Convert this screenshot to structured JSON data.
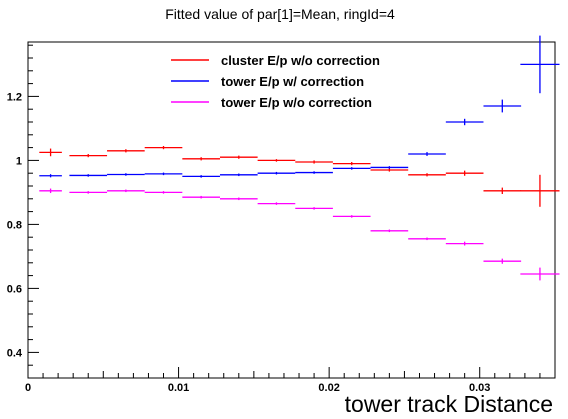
{
  "chart_data": {
    "type": "scatter",
    "title": "Fitted value of par[1]=Mean, ringId=4",
    "xlabel": "tower track Distance",
    "ylabel": "",
    "xlim": [
      0,
      0.035
    ],
    "ylim": [
      0.32,
      1.37
    ],
    "x_ticks": [
      {
        "value": 0,
        "label": "0"
      },
      {
        "value": 0.01,
        "label": "0.01"
      },
      {
        "value": 0.02,
        "label": "0.02"
      },
      {
        "value": 0.03,
        "label": "0.03"
      }
    ],
    "y_ticks": [
      {
        "value": 0.4,
        "label": "0.4"
      },
      {
        "value": 0.6,
        "label": "0.6"
      },
      {
        "value": 0.8,
        "label": "0.8"
      },
      {
        "value": 1.0,
        "label": "1"
      },
      {
        "value": 1.2,
        "label": "1.2"
      }
    ],
    "x_bin_edges": [
      0.00075,
      0.00325,
      0.00575,
      0.00825,
      0.01075,
      0.01325,
      0.01575,
      0.01825,
      0.02075,
      0.02325,
      0.02575,
      0.02825,
      0.03075,
      0.03325,
      0.0358
    ],
    "series": [
      {
        "name": "cluster E/p w/o correction",
        "color": "#ff0000",
        "x": [
          0.0015,
          0.004,
          0.0065,
          0.009,
          0.0115,
          0.014,
          0.0165,
          0.019,
          0.0215,
          0.024,
          0.0265,
          0.029,
          0.0315,
          0.034
        ],
        "y": [
          1.025,
          1.015,
          1.03,
          1.04,
          1.005,
          1.01,
          1.0,
          0.995,
          0.99,
          0.97,
          0.955,
          0.96,
          0.905,
          0.905
        ],
        "yerr": [
          0.012,
          0.005,
          0.005,
          0.005,
          0.005,
          0.005,
          0.004,
          0.005,
          0.005,
          0.005,
          0.005,
          0.008,
          0.01,
          0.05
        ],
        "xerr": [
          0.00075,
          0.00125,
          0.00125,
          0.00125,
          0.00125,
          0.00125,
          0.00125,
          0.00125,
          0.00125,
          0.00125,
          0.00125,
          0.00125,
          0.00125,
          0.0013
        ]
      },
      {
        "name": "tower E/p w/ correction",
        "color": "#0000ff",
        "x": [
          0.0015,
          0.004,
          0.0065,
          0.009,
          0.0115,
          0.014,
          0.0165,
          0.019,
          0.0215,
          0.024,
          0.0265,
          0.029,
          0.0315,
          0.034
        ],
        "y": [
          0.952,
          0.953,
          0.956,
          0.958,
          0.95,
          0.955,
          0.96,
          0.962,
          0.975,
          0.978,
          1.02,
          1.12,
          1.17,
          1.3
        ],
        "yerr": [
          0.005,
          0.004,
          0.004,
          0.004,
          0.004,
          0.004,
          0.004,
          0.004,
          0.004,
          0.004,
          0.006,
          0.01,
          0.02,
          0.09
        ],
        "xerr": [
          0.00075,
          0.00125,
          0.00125,
          0.00125,
          0.00125,
          0.00125,
          0.00125,
          0.00125,
          0.00125,
          0.00125,
          0.00125,
          0.00125,
          0.00125,
          0.0013
        ]
      },
      {
        "name": "tower E/p w/o correction",
        "color": "#ff00ff",
        "x": [
          0.0015,
          0.004,
          0.0065,
          0.009,
          0.0115,
          0.014,
          0.0165,
          0.019,
          0.0215,
          0.024,
          0.0265,
          0.029,
          0.0315,
          0.034
        ],
        "y": [
          0.905,
          0.9,
          0.905,
          0.9,
          0.885,
          0.88,
          0.865,
          0.85,
          0.825,
          0.78,
          0.755,
          0.74,
          0.685,
          0.645
        ],
        "yerr": [
          0.007,
          0.004,
          0.004,
          0.004,
          0.004,
          0.004,
          0.004,
          0.004,
          0.004,
          0.004,
          0.004,
          0.006,
          0.008,
          0.02
        ],
        "xerr": [
          0.00075,
          0.00125,
          0.00125,
          0.00125,
          0.00125,
          0.00125,
          0.00125,
          0.00125,
          0.00125,
          0.00125,
          0.00125,
          0.00125,
          0.00125,
          0.0013
        ]
      }
    ],
    "legend_position": "top",
    "grid": false
  }
}
